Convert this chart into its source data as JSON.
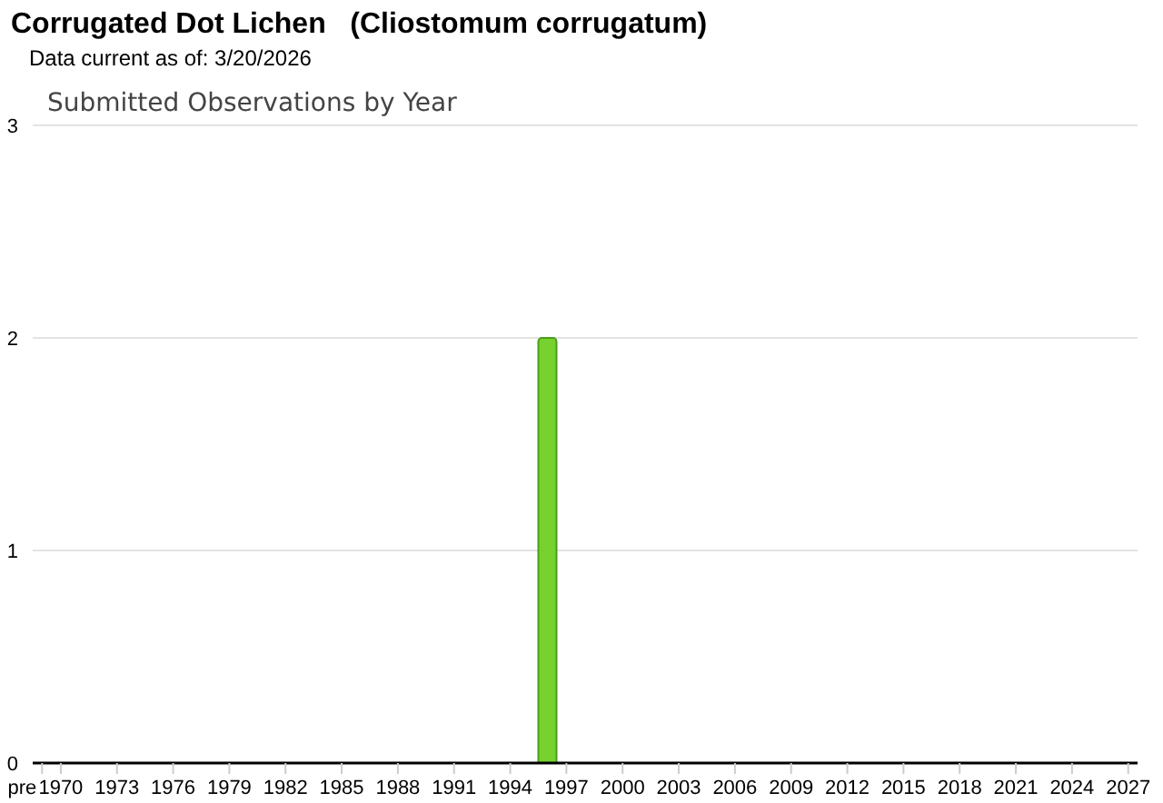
{
  "chart_data": {
    "type": "bar",
    "title": "Corrugated Dot Lichen   (Cliostomum corrugatum)",
    "subtitle": "Data current as of: 3/20/2026",
    "annotations": [
      "Submitted Observations by Year"
    ],
    "categories": [
      "pre",
      "1970",
      null,
      null,
      "1973",
      null,
      null,
      "1976",
      null,
      null,
      "1979",
      null,
      null,
      "1982",
      null,
      null,
      "1985",
      null,
      null,
      "1988",
      null,
      null,
      "1991",
      null,
      null,
      "1994",
      null,
      null,
      "1997",
      null,
      null,
      "2000",
      null,
      null,
      "2003",
      null,
      null,
      "2006",
      null,
      null,
      "2009",
      null,
      null,
      "2012",
      null,
      null,
      "2015",
      null,
      null,
      "2018",
      null,
      null,
      "2021",
      null,
      null,
      "2024",
      null,
      null,
      "2027"
    ],
    "values": [
      0,
      0,
      0,
      0,
      0,
      0,
      0,
      0,
      0,
      0,
      0,
      0,
      0,
      0,
      0,
      0,
      0,
      0,
      0,
      0,
      0,
      0,
      0,
      0,
      0,
      0,
      0,
      2,
      0,
      0,
      0,
      0,
      0,
      0,
      0,
      0,
      0,
      0,
      0,
      0,
      0,
      0,
      0,
      0,
      0,
      0,
      0,
      0,
      0,
      0,
      0,
      0,
      0,
      0,
      0,
      0,
      0,
      0,
      0
    ],
    "color": "#77d12e",
    "ylim": [
      0,
      3
    ],
    "yticks": [
      0,
      1,
      2,
      3
    ],
    "grid": "y",
    "legend": false
  }
}
